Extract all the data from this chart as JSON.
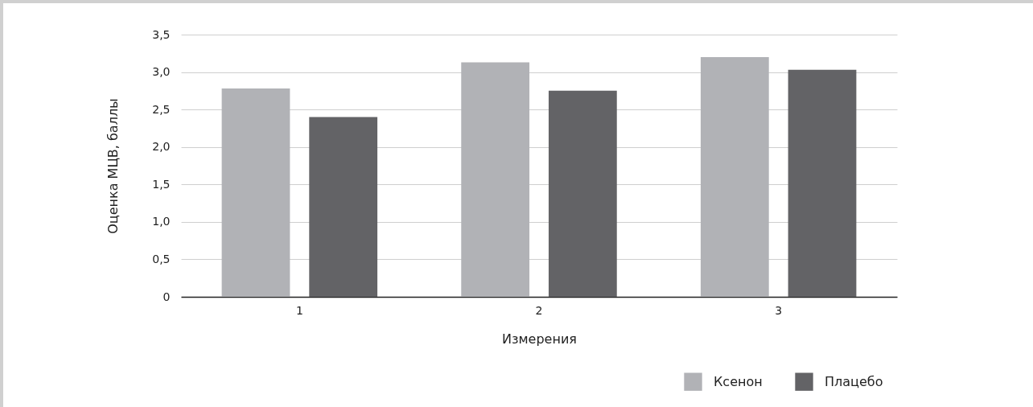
{
  "chart_data": {
    "type": "bar",
    "xlabel": "Измерения",
    "ylabel": "Оценка МЦВ, баллы",
    "categories": [
      "1",
      "2",
      "3"
    ],
    "series": [
      {
        "name": "Ксенон",
        "color": "#b1b2b6",
        "values": [
          2.78,
          3.13,
          3.2
        ]
      },
      {
        "name": "Плацебо",
        "color": "#636366",
        "values": [
          2.4,
          2.75,
          3.03
        ]
      }
    ],
    "ylim": [
      0,
      3.5
    ],
    "yticks": [
      {
        "value": 0,
        "label": "0"
      },
      {
        "value": 0.5,
        "label": "0,5"
      },
      {
        "value": 1,
        "label": "1,0"
      },
      {
        "value": 1.5,
        "label": "1,5"
      },
      {
        "value": 2,
        "label": "2,0"
      },
      {
        "value": 2.5,
        "label": "2,5"
      },
      {
        "value": 3,
        "label": "3,0"
      },
      {
        "value": 3.5,
        "label": "3,5"
      }
    ],
    "grid": "y",
    "legend": "bottom right"
  }
}
